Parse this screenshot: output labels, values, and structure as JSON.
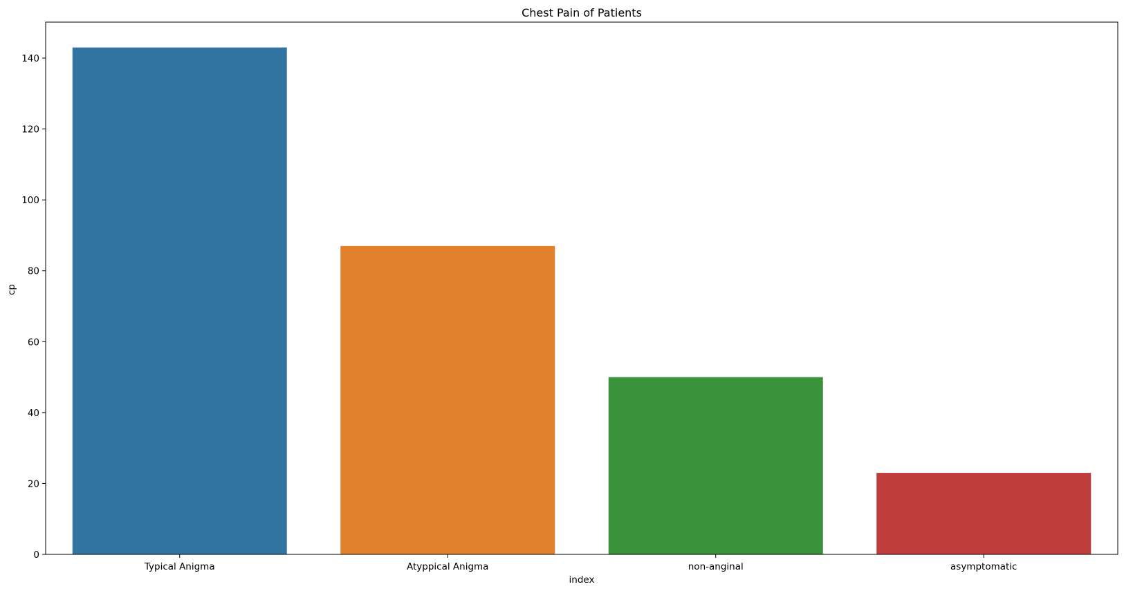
{
  "chart_data": {
    "type": "bar",
    "title": "Chest Pain of Patients",
    "xlabel": "index",
    "ylabel": "cp",
    "categories": [
      "Typical Anigma",
      "Atyppical Anigma",
      "non-anginal",
      "asymptomatic"
    ],
    "values": [
      143,
      87,
      50,
      23
    ],
    "colors": [
      "#3274a1",
      "#e1812c",
      "#3a923a",
      "#c03d3e"
    ],
    "ylim": [
      0,
      150.15
    ],
    "yticks": [
      0,
      20,
      40,
      60,
      80,
      100,
      120,
      140
    ],
    "grid": false,
    "legend": "none"
  }
}
